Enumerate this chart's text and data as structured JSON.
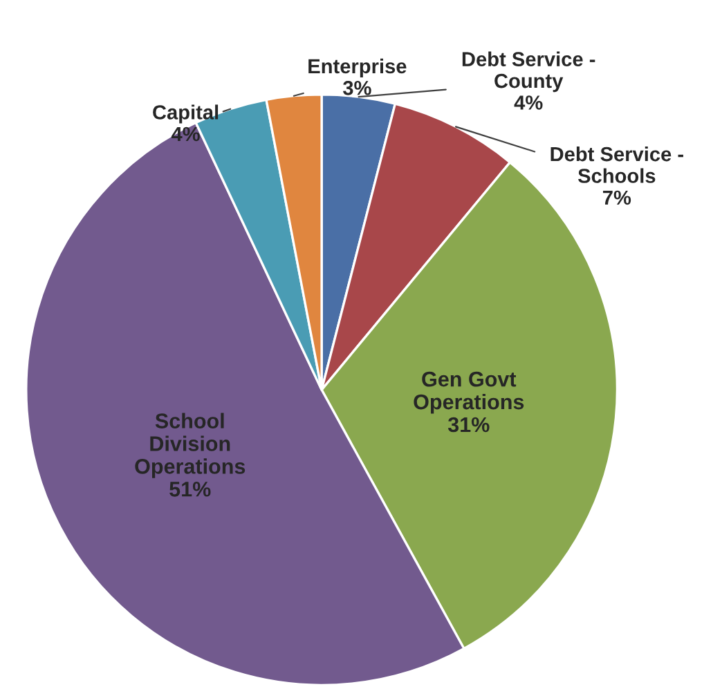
{
  "chart_data": {
    "type": "pie",
    "categories": [
      "Debt Service -\nCounty",
      "Debt Service -\nSchools",
      "Gen Govt\nOperations",
      "School\nDivision\nOperations",
      "Capital",
      "Enterprise"
    ],
    "values": [
      4,
      7,
      31,
      51,
      4,
      3
    ],
    "value_labels": [
      "4%",
      "7%",
      "31%",
      "51%",
      "4%",
      "3%"
    ],
    "colors": [
      "#4a6fa6",
      "#a8474a",
      "#8aa84f",
      "#725a8e",
      "#4a9cb4",
      "#e0863f"
    ],
    "legend": false
  }
}
